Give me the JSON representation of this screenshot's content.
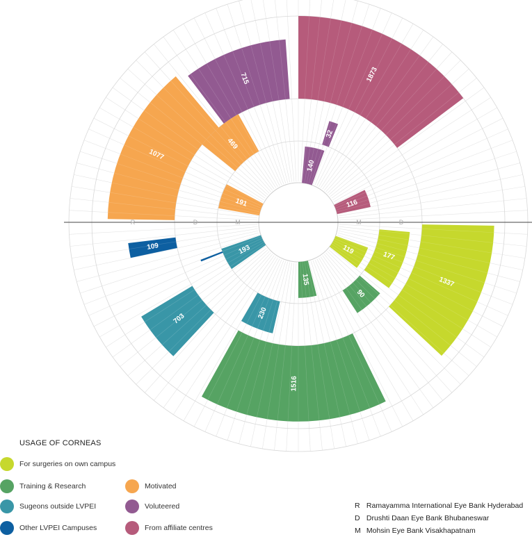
{
  "chart_data": {
    "type": "radial-bar",
    "title": "",
    "ring_labels": [
      "R",
      "D",
      "M"
    ],
    "categories": [
      {
        "key": "own_campus",
        "label": "For surgeries on own campus",
        "color": "#c6d82d"
      },
      {
        "key": "training",
        "label": "Training & Research",
        "color": "#56a363"
      },
      {
        "key": "outside",
        "label": "Sugeons outside LVPEI",
        "color": "#3996a7"
      },
      {
        "key": "other_campus",
        "label": "Other LVPEI Campuses",
        "color": "#0d5fa1"
      },
      {
        "key": "motivated",
        "label": "Motivated",
        "color": "#f6a64f"
      },
      {
        "key": "volunteered",
        "label": "Voluteered",
        "color": "#925a91"
      },
      {
        "key": "affiliate",
        "label": "From affiliate  centres",
        "color": "#b65b7b"
      }
    ],
    "bars": [
      {
        "ring": "R",
        "category": "affiliate",
        "value": 1873,
        "label": "1873"
      },
      {
        "ring": "D",
        "category": "volunteered",
        "value": 32,
        "label": "32"
      },
      {
        "ring": "M",
        "category": "volunteered",
        "value": 140,
        "label": "140"
      },
      {
        "ring": "M",
        "category": "affiliate",
        "value": 116,
        "label": "116"
      },
      {
        "ring": "R",
        "category": "volunteered",
        "value": 715,
        "label": "715"
      },
      {
        "ring": "D",
        "category": "motivated",
        "value": 469,
        "label": "469"
      },
      {
        "ring": "R",
        "category": "motivated",
        "value": 1077,
        "label": "1077"
      },
      {
        "ring": "M",
        "category": "motivated",
        "value": 191,
        "label": "191"
      },
      {
        "ring": "R",
        "category": "own_campus",
        "value": 1337,
        "label": "1337"
      },
      {
        "ring": "D",
        "category": "own_campus",
        "value": 177,
        "label": "177"
      },
      {
        "ring": "M",
        "category": "own_campus",
        "value": 119,
        "label": "119"
      },
      {
        "ring": "D",
        "category": "training",
        "value": 90,
        "label": "90"
      },
      {
        "ring": "R",
        "category": "training",
        "value": 1516,
        "label": "1516"
      },
      {
        "ring": "M",
        "category": "training",
        "value": 135,
        "label": "135"
      },
      {
        "ring": "D",
        "category": "outside",
        "value": 230,
        "label": "230"
      },
      {
        "ring": "R",
        "category": "outside",
        "value": 703,
        "label": "703"
      },
      {
        "ring": "M",
        "category": "outside",
        "value": 193,
        "label": "193"
      },
      {
        "ring": "D",
        "category": "other_campus",
        "value": 1,
        "label": ""
      },
      {
        "ring": "R",
        "category": "other_campus",
        "value": 109,
        "label": "109"
      }
    ]
  },
  "legend": {
    "title": "USAGE OF CORNEAS",
    "items": [
      {
        "label": "For surgeries on own campus",
        "color": "#c6d82d"
      },
      {
        "label": "Training & Research",
        "color": "#56a363"
      },
      {
        "label": "Motivated",
        "color": "#f6a64f"
      },
      {
        "label": "Sugeons outside LVPEI",
        "color": "#3996a7"
      },
      {
        "label": "Voluteered",
        "color": "#925a91"
      },
      {
        "label": "Other LVPEI Campuses",
        "color": "#0d5fa1"
      },
      {
        "label": "From affiliate  centres",
        "color": "#b65b7b"
      }
    ]
  },
  "key": [
    {
      "letter": "R",
      "name": "Ramayamma International Eye Bank Hyderabad"
    },
    {
      "letter": "D",
      "name": "Drushti Daan Eye Bank Bhubaneswar"
    },
    {
      "letter": "M",
      "name": "Mohsin Eye Bank Visakhapatnam"
    }
  ]
}
